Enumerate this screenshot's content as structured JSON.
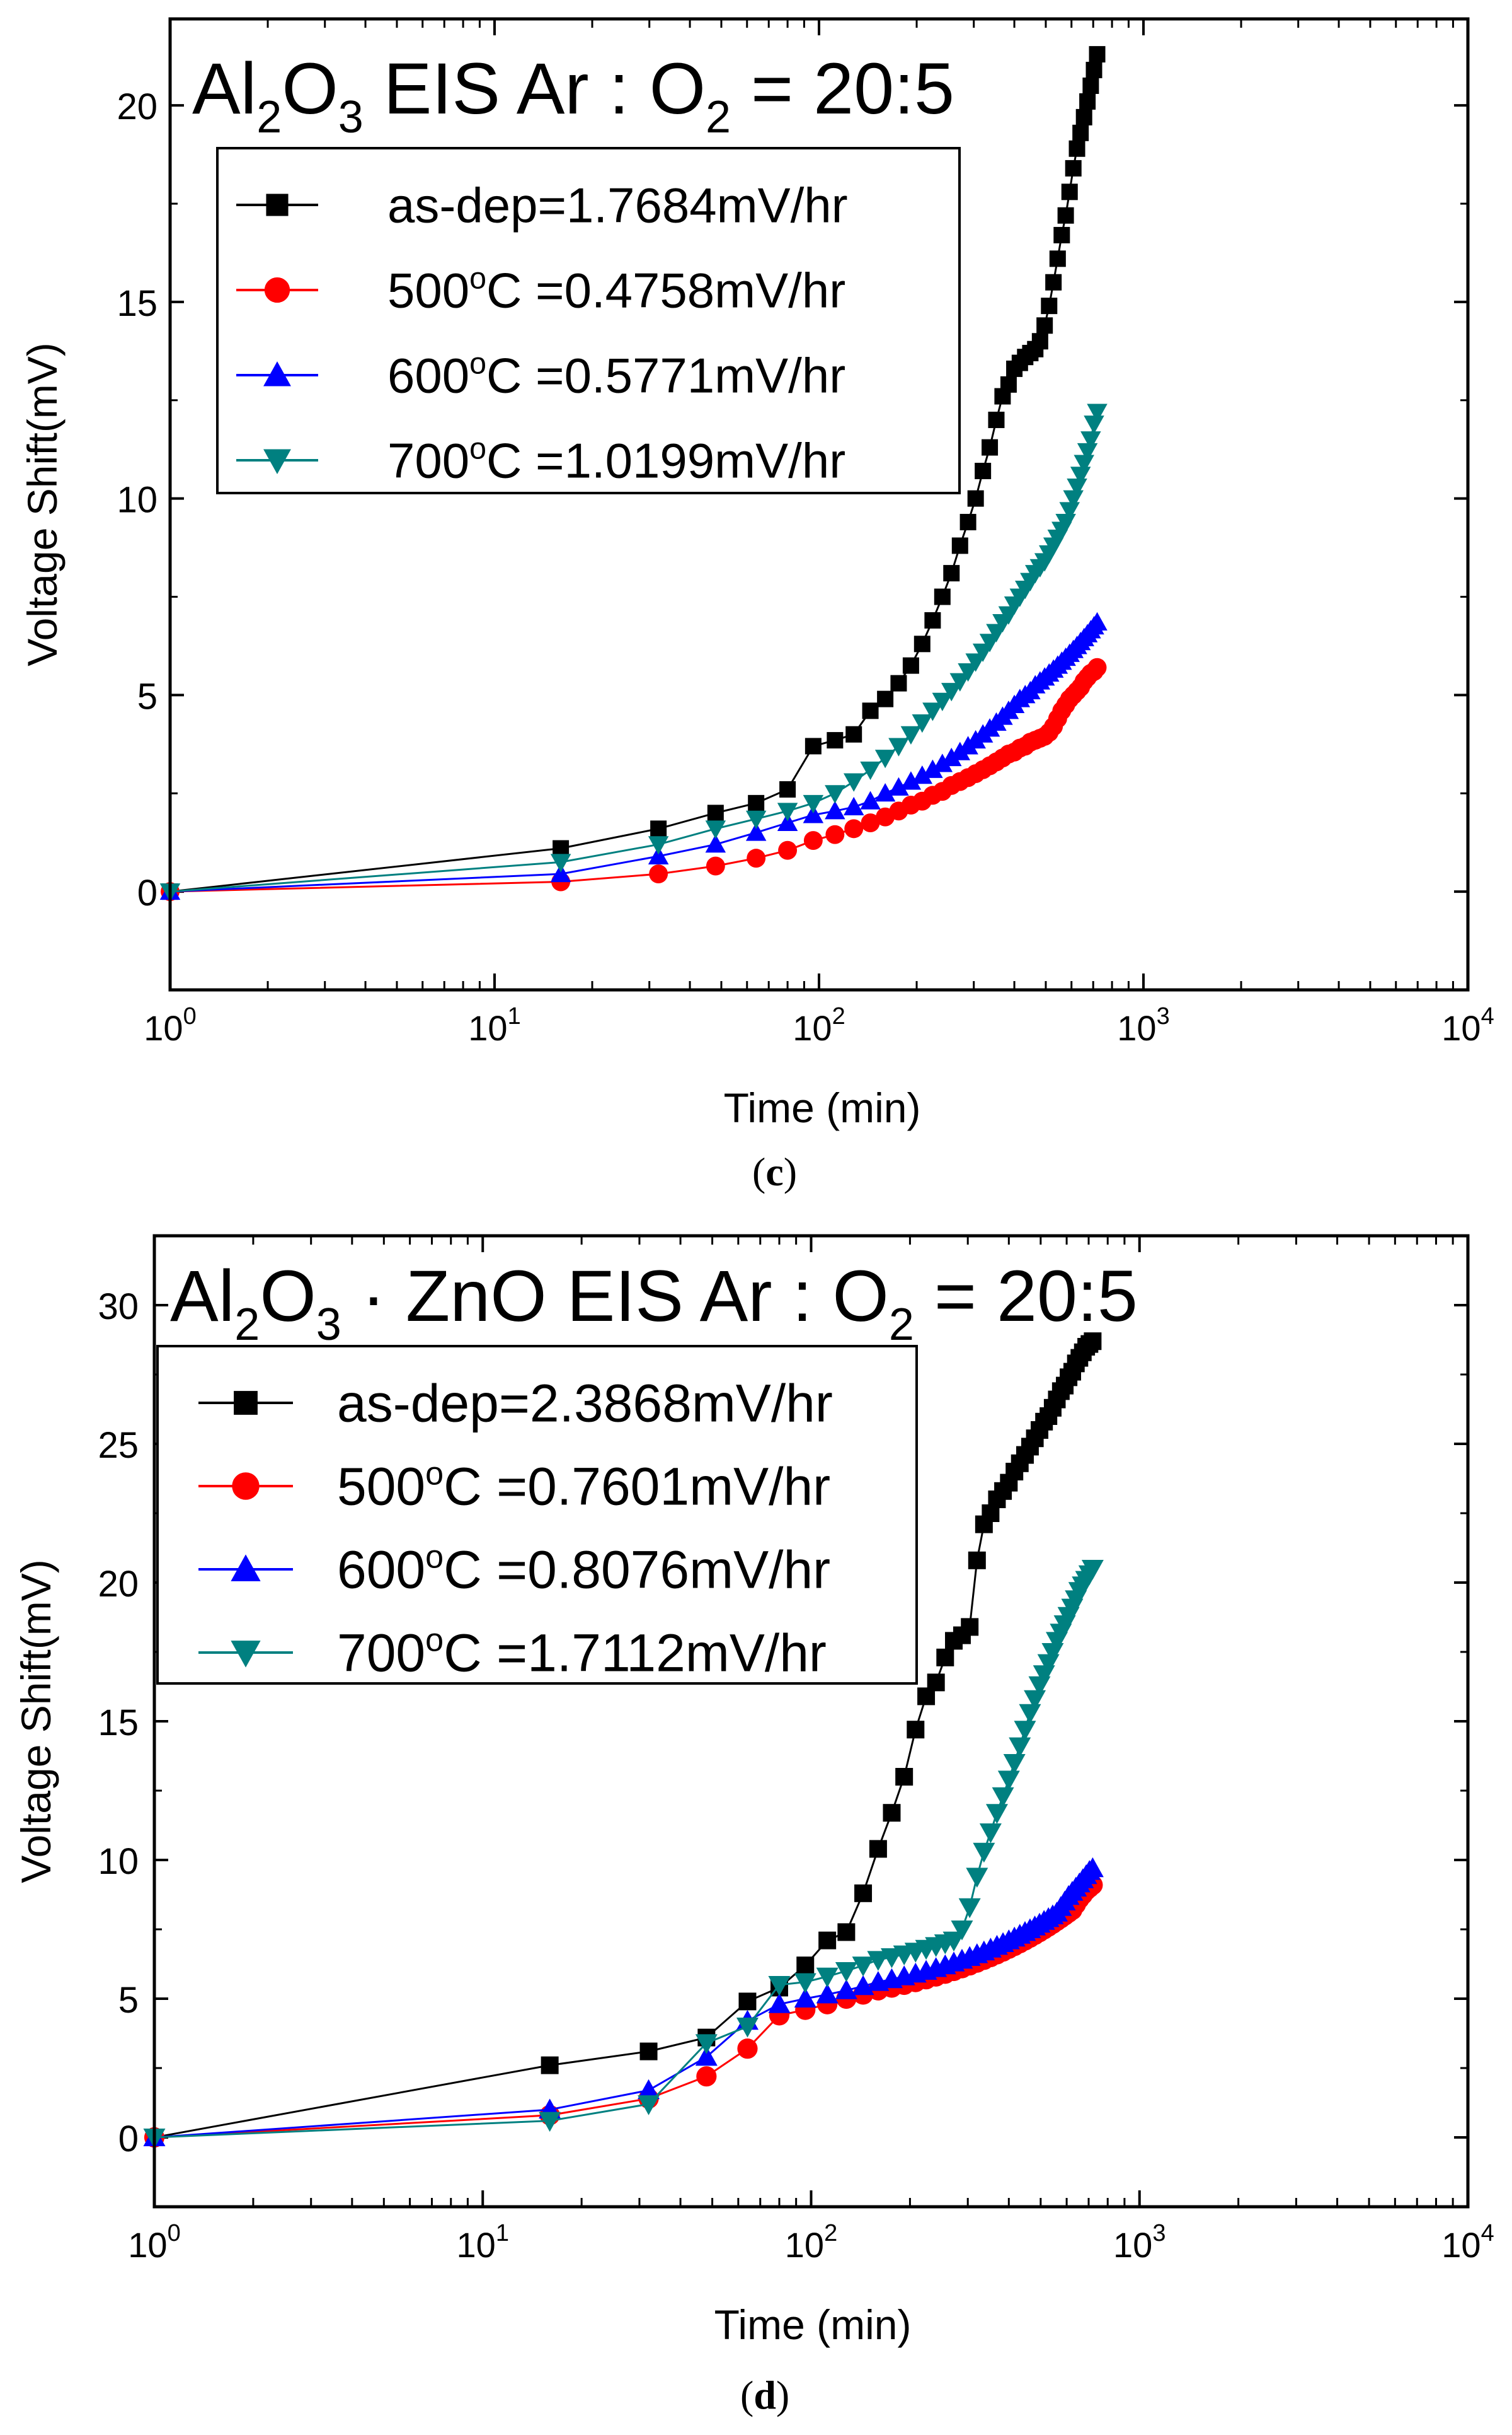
{
  "chart_data": [
    {
      "type": "line",
      "panel_label": "(c)",
      "title": "Al2O3 EIS Ar : O2 = 20:5",
      "xlabel": "Time (min)",
      "ylabel": "Voltage Shift(mV)",
      "xscale": "log",
      "xlim": [
        1,
        10000
      ],
      "ylim": [
        -2.5,
        22.2
      ],
      "yticks": [
        0,
        5,
        10,
        15,
        20
      ],
      "xtick_labels": [
        {
          "base": "10",
          "exp": "0",
          "value": 1
        },
        {
          "base": "10",
          "exp": "1",
          "value": 10
        },
        {
          "base": "10",
          "exp": "2",
          "value": 100
        },
        {
          "base": "10",
          "exp": "3",
          "value": 1000
        },
        {
          "base": "10",
          "exp": "4",
          "value": 10000
        }
      ],
      "legend_position": "top-left",
      "series": [
        {
          "name": "as-dep=1.7684mV/hr",
          "marker": "square",
          "color": "#000000",
          "x": [
            1,
            16,
            32,
            48,
            64,
            80,
            96,
            112,
            128,
            144,
            160,
            176,
            192,
            208,
            224,
            240,
            256,
            272,
            288,
            304,
            320,
            336,
            352,
            368,
            384,
            400,
            416,
            432,
            448,
            464,
            480,
            496,
            512,
            528,
            544,
            560,
            576,
            592,
            608,
            624,
            640,
            656,
            672,
            688,
            704,
            720
          ],
          "y": [
            0,
            1.1,
            1.6,
            2.0,
            2.25,
            2.6,
            3.7,
            3.85,
            4.0,
            4.6,
            4.9,
            5.3,
            5.75,
            6.3,
            6.9,
            7.5,
            8.1,
            8.8,
            9.4,
            10.0,
            10.7,
            11.3,
            12.0,
            12.6,
            12.9,
            13.3,
            13.45,
            13.6,
            13.7,
            13.8,
            14.0,
            14.4,
            14.9,
            15.5,
            16.1,
            16.7,
            17.2,
            17.8,
            18.4,
            18.9,
            19.3,
            19.7,
            20.1,
            20.5,
            20.9,
            21.3
          ]
        },
        {
          "name": "500°C =0.4758mV/hr",
          "marker": "circle",
          "color": "#ff0000",
          "x": [
            1,
            16,
            32,
            48,
            64,
            80,
            96,
            112,
            128,
            144,
            160,
            176,
            192,
            208,
            224,
            240,
            256,
            272,
            288,
            304,
            320,
            336,
            352,
            368,
            384,
            400,
            416,
            432,
            448,
            464,
            480,
            496,
            512,
            528,
            544,
            560,
            576,
            592,
            608,
            624,
            640,
            656,
            672,
            688,
            704,
            720
          ],
          "y": [
            0,
            0.25,
            0.45,
            0.65,
            0.85,
            1.05,
            1.3,
            1.45,
            1.6,
            1.75,
            1.9,
            2.05,
            2.2,
            2.3,
            2.45,
            2.55,
            2.7,
            2.8,
            2.9,
            3.0,
            3.1,
            3.2,
            3.3,
            3.4,
            3.5,
            3.55,
            3.65,
            3.7,
            3.8,
            3.85,
            3.9,
            3.95,
            4.05,
            4.2,
            4.4,
            4.6,
            4.75,
            4.9,
            5.0,
            5.1,
            5.2,
            5.35,
            5.45,
            5.55,
            5.6,
            5.7
          ]
        },
        {
          "name": "600°C =0.5771mV/hr",
          "marker": "triangle-up",
          "color": "#0000ff",
          "x": [
            1,
            16,
            32,
            48,
            64,
            80,
            96,
            112,
            128,
            144,
            160,
            176,
            192,
            208,
            224,
            240,
            256,
            272,
            288,
            304,
            320,
            336,
            352,
            368,
            384,
            400,
            416,
            432,
            448,
            464,
            480,
            496,
            512,
            528,
            544,
            560,
            576,
            592,
            608,
            624,
            640,
            656,
            672,
            688,
            704,
            720
          ],
          "y": [
            0,
            0.45,
            0.9,
            1.2,
            1.5,
            1.75,
            1.95,
            2.05,
            2.15,
            2.3,
            2.5,
            2.65,
            2.8,
            2.95,
            3.1,
            3.25,
            3.4,
            3.55,
            3.7,
            3.85,
            4.0,
            4.15,
            4.3,
            4.45,
            4.6,
            4.75,
            4.9,
            5.0,
            5.1,
            5.25,
            5.35,
            5.45,
            5.55,
            5.65,
            5.75,
            5.85,
            5.95,
            6.05,
            6.15,
            6.25,
            6.35,
            6.45,
            6.55,
            6.65,
            6.75,
            6.85
          ]
        },
        {
          "name": "700°C =1.0199mV/hr",
          "marker": "triangle-down",
          "color": "#008080",
          "x": [
            1,
            16,
            32,
            48,
            64,
            80,
            96,
            112,
            128,
            144,
            160,
            176,
            192,
            208,
            224,
            240,
            256,
            272,
            288,
            304,
            320,
            336,
            352,
            368,
            384,
            400,
            416,
            432,
            448,
            464,
            480,
            496,
            512,
            528,
            544,
            560,
            576,
            592,
            608,
            624,
            640,
            656,
            672,
            688,
            704,
            720
          ],
          "y": [
            0,
            0.75,
            1.2,
            1.6,
            1.85,
            2.05,
            2.25,
            2.5,
            2.8,
            3.1,
            3.4,
            3.7,
            4.0,
            4.3,
            4.6,
            4.85,
            5.1,
            5.35,
            5.6,
            5.85,
            6.1,
            6.35,
            6.6,
            6.85,
            7.05,
            7.3,
            7.5,
            7.7,
            7.9,
            8.1,
            8.25,
            8.4,
            8.6,
            8.8,
            9.0,
            9.2,
            9.4,
            9.7,
            10.0,
            10.3,
            10.6,
            10.9,
            11.2,
            11.5,
            11.9,
            12.2
          ]
        }
      ]
    },
    {
      "type": "line",
      "panel_label": "(d)",
      "title": "Al2O3 · ZnO EIS Ar : O2 = 20:5",
      "xlabel": "Time (min)",
      "ylabel": "Voltage Shift(mV)",
      "xscale": "log",
      "xlim": [
        1,
        10000
      ],
      "ylim": [
        -2.5,
        32.5
      ],
      "yticks": [
        0,
        5,
        10,
        15,
        20,
        25,
        30
      ],
      "xtick_labels": [
        {
          "base": "10",
          "exp": "0",
          "value": 1
        },
        {
          "base": "10",
          "exp": "1",
          "value": 10
        },
        {
          "base": "10",
          "exp": "2",
          "value": 100
        },
        {
          "base": "10",
          "exp": "3",
          "value": 1000
        },
        {
          "base": "10",
          "exp": "4",
          "value": 10000
        }
      ],
      "legend_position": "top-left",
      "series": [
        {
          "name": "as-dep=2.3868mV/hr",
          "marker": "square",
          "color": "#000000",
          "x": [
            1,
            16,
            32,
            48,
            64,
            80,
            96,
            112,
            128,
            144,
            160,
            176,
            192,
            208,
            224,
            240,
            256,
            272,
            288,
            304,
            320,
            336,
            352,
            368,
            384,
            400,
            416,
            432,
            448,
            464,
            480,
            496,
            512,
            528,
            544,
            560,
            576,
            592,
            608,
            624,
            640,
            656,
            672,
            688,
            704,
            720
          ],
          "y": [
            0,
            2.6,
            3.1,
            3.6,
            4.9,
            5.4,
            6.2,
            7.1,
            7.4,
            8.8,
            10.4,
            11.7,
            13.0,
            14.7,
            15.9,
            16.4,
            17.3,
            17.9,
            18.1,
            18.4,
            20.8,
            22.1,
            22.5,
            23.0,
            23.3,
            23.6,
            24.0,
            24.3,
            24.6,
            24.9,
            25.2,
            25.5,
            25.8,
            26.0,
            26.3,
            26.6,
            26.9,
            27.1,
            27.4,
            27.6,
            27.9,
            28.1,
            28.3,
            28.5,
            28.6,
            28.7
          ]
        },
        {
          "name": "500°C =0.7601mV/hr",
          "marker": "circle",
          "color": "#ff0000",
          "x": [
            1,
            16,
            32,
            48,
            64,
            80,
            96,
            112,
            128,
            144,
            160,
            176,
            192,
            208,
            224,
            240,
            256,
            272,
            288,
            304,
            320,
            336,
            352,
            368,
            384,
            400,
            416,
            432,
            448,
            464,
            480,
            496,
            512,
            528,
            544,
            560,
            576,
            592,
            608,
            624,
            640,
            656,
            672,
            688,
            704,
            720
          ],
          "y": [
            0,
            0.8,
            1.4,
            2.2,
            3.2,
            4.4,
            4.6,
            4.8,
            5.0,
            5.15,
            5.3,
            5.4,
            5.5,
            5.6,
            5.7,
            5.8,
            5.9,
            6.0,
            6.1,
            6.2,
            6.3,
            6.4,
            6.5,
            6.6,
            6.7,
            6.8,
            6.9,
            7.0,
            7.1,
            7.2,
            7.3,
            7.4,
            7.5,
            7.6,
            7.7,
            7.8,
            7.9,
            8.0,
            8.1,
            8.2,
            8.4,
            8.6,
            8.75,
            8.9,
            9.0,
            9.1
          ]
        },
        {
          "name": "600°C =0.8076mV/hr",
          "marker": "triangle-up",
          "color": "#0000ff",
          "x": [
            1,
            16,
            32,
            48,
            64,
            80,
            96,
            112,
            128,
            144,
            160,
            176,
            192,
            208,
            224,
            240,
            256,
            272,
            288,
            304,
            320,
            336,
            352,
            368,
            384,
            400,
            416,
            432,
            448,
            464,
            480,
            496,
            512,
            528,
            544,
            560,
            576,
            592,
            608,
            624,
            640,
            656,
            672,
            688,
            704,
            720
          ],
          "y": [
            0,
            1.0,
            1.7,
            2.9,
            4.2,
            4.8,
            5.0,
            5.15,
            5.3,
            5.45,
            5.6,
            5.7,
            5.8,
            5.9,
            6.0,
            6.1,
            6.2,
            6.3,
            6.4,
            6.5,
            6.6,
            6.7,
            6.8,
            6.9,
            7.0,
            7.1,
            7.2,
            7.3,
            7.4,
            7.5,
            7.6,
            7.7,
            7.8,
            7.9,
            8.0,
            8.1,
            8.3,
            8.5,
            8.7,
            8.85,
            9.0,
            9.15,
            9.3,
            9.45,
            9.6,
            9.7
          ]
        },
        {
          "name": "700°C =1.7112mV/hr",
          "marker": "triangle-down",
          "color": "#008080",
          "x": [
            1,
            16,
            32,
            48,
            64,
            80,
            96,
            112,
            128,
            144,
            160,
            176,
            192,
            208,
            224,
            240,
            256,
            272,
            288,
            304,
            320,
            336,
            352,
            368,
            384,
            400,
            416,
            432,
            448,
            464,
            480,
            496,
            512,
            528,
            544,
            560,
            576,
            592,
            608,
            624,
            640,
            656,
            672,
            688,
            704,
            720
          ],
          "y": [
            0,
            0.6,
            1.2,
            3.4,
            4.0,
            5.5,
            5.6,
            5.8,
            6.0,
            6.2,
            6.4,
            6.5,
            6.6,
            6.7,
            6.8,
            6.9,
            7.0,
            7.1,
            7.5,
            8.3,
            9.4,
            10.3,
            11.0,
            11.7,
            12.3,
            12.9,
            13.5,
            14.1,
            14.7,
            15.3,
            15.8,
            16.3,
            16.7,
            17.1,
            17.5,
            17.9,
            18.2,
            18.5,
            18.8,
            19.1,
            19.4,
            19.7,
            19.9,
            20.1,
            20.3,
            20.5
          ]
        }
      ]
    }
  ]
}
